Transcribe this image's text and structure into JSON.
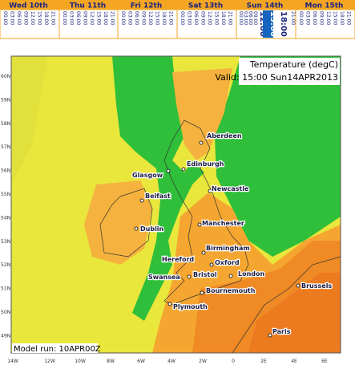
{
  "tabs": [
    {
      "day": "Wed 10th",
      "hours": [
        "00:00",
        "03:00",
        "06:00",
        "09:00",
        "12:00",
        "15:00",
        "18:00",
        "21:00"
      ]
    },
    {
      "day": "Thu 11th",
      "hours": [
        "00:00",
        "03:00",
        "06:00",
        "09:00",
        "12:00",
        "15:00",
        "18:00",
        "21:00"
      ]
    },
    {
      "day": "Fri 12th",
      "hours": [
        "00:00",
        "03:00",
        "06:00",
        "09:00",
        "12:00",
        "15:00",
        "18:00",
        "21:00"
      ]
    },
    {
      "day": "Sat 13th",
      "hours": [
        "00:00",
        "03:00",
        "06:00",
        "09:00",
        "12:00",
        "15:00",
        "18:00",
        "21:00"
      ]
    },
    {
      "day": "Sun 14th",
      "hours": [
        "00:00",
        "03:00",
        "06:00",
        "09:00",
        "12:00",
        "15:00",
        "18:00",
        "21:00"
      ]
    },
    {
      "day": "Mon 15th",
      "hours": [
        "00:00",
        "03:00",
        "06:00",
        "09:00",
        "12:00",
        "15:00",
        "18:00",
        "21:00"
      ]
    }
  ],
  "map": {
    "title": "Temperature (degC)",
    "valid": "Valid: 15:00 Sun14APR2013",
    "model_run": "Model run: 10APR00Z",
    "lat_labels": [
      "60N",
      "59N",
      "58N",
      "57N",
      "56N",
      "55N",
      "54N",
      "53N",
      "52N",
      "51N",
      "50N",
      "49N"
    ],
    "lon_labels": [
      "14W",
      "12W",
      "10W",
      "8W",
      "6W",
      "4W",
      "2W",
      "0",
      "2E",
      "4E",
      "6E"
    ],
    "cities": [
      "Aberdeen",
      "Edinburgh",
      "Glasgow",
      "Newcastle",
      "Belfast",
      "Dublin",
      "Manchester",
      "Birmingham",
      "Hereford",
      "Oxford",
      "Swansea",
      "Bristol",
      "London",
      "Bournemouth",
      "Plymouth",
      "Brussels",
      "Paris"
    ]
  }
}
